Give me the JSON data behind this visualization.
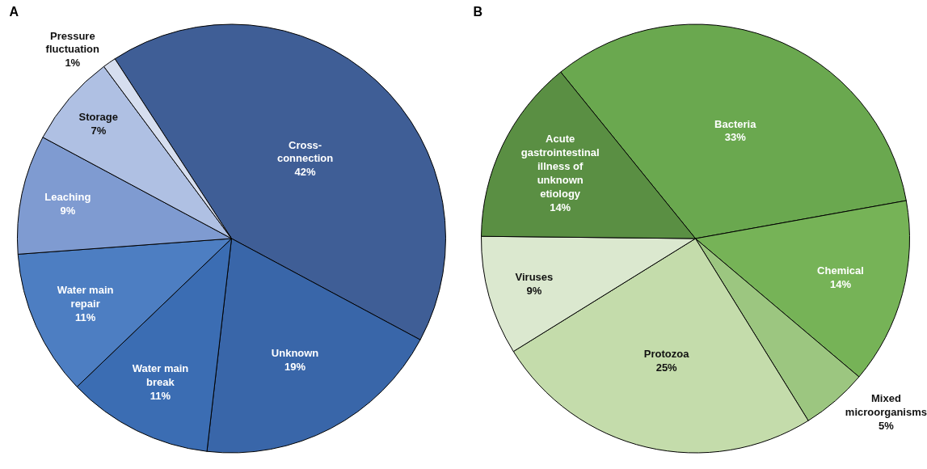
{
  "chart_data": [
    {
      "type": "pie",
      "title": "A",
      "categories": [
        "Cross-connection",
        "Unknown",
        "Water main break",
        "Water main repair",
        "Leaching",
        "Storage",
        "Pressure fluctuation"
      ],
      "values": [
        42,
        19,
        11,
        11,
        9,
        7,
        1
      ],
      "value_labels": [
        "42%",
        "19%",
        "11%",
        "11%",
        "9%",
        "7%",
        "1%"
      ],
      "colors": [
        "#3f5e96",
        "#3966a9",
        "#3b6db3",
        "#4d7ec2",
        "#7f9bd1",
        "#afc0e3",
        "#d6deef"
      ],
      "legend": false
    },
    {
      "type": "pie",
      "title": "B",
      "categories": [
        "Bacteria",
        "Chemical",
        "Mixed microorganisms",
        "Protozoa",
        "Viruses",
        "Acute gastrointestinal illness of unknown etiology"
      ],
      "values": [
        33,
        14,
        5,
        25,
        9,
        14
      ],
      "value_labels": [
        "33%",
        "14%",
        "5%",
        "25%",
        "9%",
        "14%"
      ],
      "colors": [
        "#6aa84f",
        "#76b357",
        "#9cc680",
        "#c4dcab",
        "#dbe8cf",
        "#5a8f43"
      ],
      "legend": false
    }
  ]
}
